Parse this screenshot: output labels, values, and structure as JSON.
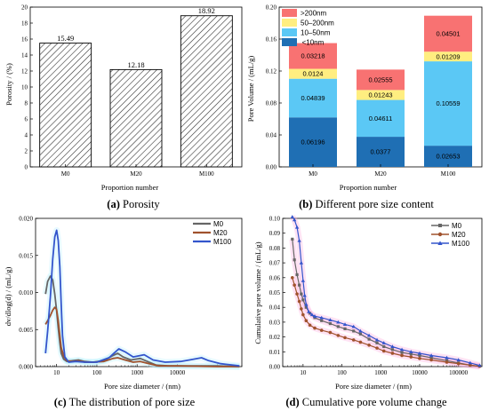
{
  "captions": {
    "a": {
      "letter": "(a)",
      "text": " Porosity"
    },
    "b": {
      "letter": "(b)",
      "text": " Different pore size content"
    },
    "c": {
      "letter": "(c)",
      "text": " The distribution of pore size"
    },
    "d": {
      "letter": "(d)",
      "text": " Cumulative pore volume change"
    }
  },
  "colors": {
    "M0": "#666666",
    "M20": "#a0522d",
    "M100": "#3355cc",
    "lt10": "#1f6fb4",
    "r10_50": "#5bc8f5",
    "r50_200": "#ffee80",
    "gt200": "#f87272"
  },
  "chart_data": [
    {
      "id": "a",
      "type": "bar",
      "categories": [
        "M0",
        "M20",
        "M100"
      ],
      "values": [
        15.49,
        12.18,
        18.92
      ],
      "value_labels": [
        "15.49",
        "12.18",
        "18.92"
      ],
      "xlabel": "Proportion number",
      "ylabel": "Porosity / (%)",
      "ylim": [
        0,
        20
      ],
      "yticks": [
        "0",
        "2",
        "4",
        "6",
        "8",
        "10",
        "12",
        "14",
        "16",
        "18",
        "20"
      ],
      "pattern": "hatch"
    },
    {
      "id": "b",
      "type": "bar",
      "stacked": true,
      "categories": [
        "M0",
        "M20",
        "M100"
      ],
      "series": [
        {
          "name": " <10nm",
          "key": "lt10",
          "values": [
            0.06196,
            0.0377,
            0.02653
          ],
          "labels": [
            "0.06196",
            "0.0377",
            "0.02653"
          ]
        },
        {
          "name": "10–50nm",
          "key": "r10_50",
          "values": [
            0.04839,
            0.04611,
            0.10559
          ],
          "labels": [
            "0.04839",
            "0.04611",
            "0.10559"
          ]
        },
        {
          "name": "50–200nm",
          "key": "r50_200",
          "values": [
            0.0124,
            0.01243,
            0.01209
          ],
          "labels": [
            "0.0124",
            "0.01243",
            "0.01209"
          ]
        },
        {
          "name": ">200nm",
          "key": "gt200",
          "values": [
            0.03218,
            0.02555,
            0.04501
          ],
          "labels": [
            "0.03218",
            "0.02555",
            "0.04501"
          ]
        }
      ],
      "legend_order": [
        "gt200",
        "r50_200",
        "r10_50",
        "lt10"
      ],
      "legend_placement": "top-left",
      "xlabel": "Proportion number",
      "ylabel": "Pore Volume / (mL/g)",
      "ylim": [
        0,
        0.2
      ],
      "yticks": [
        "0.00",
        "0.04",
        "0.08",
        "0.12",
        "0.16",
        "0.20"
      ]
    },
    {
      "id": "c",
      "type": "line",
      "xscale": "log",
      "xlabel": "Pore size diameter / (nm)",
      "ylabel": "dv/dlog(d) / (mL/g)",
      "ylim": [
        0,
        0.02
      ],
      "yticks": [
        "0.000",
        "0.005",
        "0.010",
        "0.015",
        "0.020"
      ],
      "xlim": [
        3,
        400000
      ],
      "xticks": [
        10,
        100,
        1000,
        10000,
        100000
      ],
      "xtick_labels": [
        "10",
        "100",
        "1000",
        "10000",
        ""
      ],
      "legend_placement": "top-right",
      "series": [
        {
          "name": "M0",
          "key": "M0",
          "points": [
            [
              5.3,
              0.0098
            ],
            [
              6,
              0.0115
            ],
            [
              7,
              0.0122
            ],
            [
              8,
              0.0117
            ],
            [
              9,
              0.0098
            ],
            [
              10,
              0.0075
            ],
            [
              11,
              0.0052
            ],
            [
              12,
              0.0032
            ],
            [
              13,
              0.0018
            ],
            [
              15,
              0.001
            ],
            [
              18,
              0.0007
            ],
            [
              25,
              0.0008
            ],
            [
              35,
              0.0009
            ],
            [
              50,
              0.0007
            ],
            [
              80,
              0.0006
            ],
            [
              150,
              0.0008
            ],
            [
              250,
              0.0015
            ],
            [
              330,
              0.0018
            ],
            [
              450,
              0.0013
            ],
            [
              700,
              0.0009
            ],
            [
              1200,
              0.0011
            ],
            [
              1800,
              0.0007
            ],
            [
              3000,
              0.0002
            ],
            [
              6000,
              0.0001
            ],
            [
              20000,
              0.0001
            ],
            [
              100000,
              0.0001
            ],
            [
              350000,
              0.0
            ]
          ]
        },
        {
          "name": "M20",
          "key": "M20",
          "points": [
            [
              5.3,
              0.0057
            ],
            [
              6,
              0.0062
            ],
            [
              7,
              0.0069
            ],
            [
              8,
              0.0076
            ],
            [
              9,
              0.008
            ],
            [
              10,
              0.0077
            ],
            [
              11,
              0.0062
            ],
            [
              12,
              0.0042
            ],
            [
              13,
              0.0026
            ],
            [
              15,
              0.0014
            ],
            [
              18,
              0.0008
            ],
            [
              25,
              0.0007
            ],
            [
              35,
              0.0008
            ],
            [
              50,
              0.0006
            ],
            [
              80,
              0.0006
            ],
            [
              150,
              0.0007
            ],
            [
              250,
              0.0011
            ],
            [
              330,
              0.0012
            ],
            [
              500,
              0.0009
            ],
            [
              800,
              0.0006
            ],
            [
              1200,
              0.0007
            ],
            [
              2000,
              0.0004
            ],
            [
              3500,
              0.0001
            ],
            [
              10000,
              0.0001
            ],
            [
              100000,
              0.0
            ],
            [
              350000,
              0.0
            ]
          ]
        },
        {
          "name": "M100",
          "key": "M100",
          "points": [
            [
              5.3,
              0.0018
            ],
            [
              6,
              0.0048
            ],
            [
              7,
              0.0095
            ],
            [
              8,
              0.0145
            ],
            [
              9,
              0.0175
            ],
            [
              10,
              0.0184
            ],
            [
              11,
              0.017
            ],
            [
              12,
              0.0135
            ],
            [
              13,
              0.0085
            ],
            [
              14,
              0.0042
            ],
            [
              16,
              0.0013
            ],
            [
              20,
              0.0006
            ],
            [
              30,
              0.0007
            ],
            [
              50,
              0.0006
            ],
            [
              100,
              0.0006
            ],
            [
              200,
              0.0012
            ],
            [
              350,
              0.0024
            ],
            [
              500,
              0.002
            ],
            [
              800,
              0.0013
            ],
            [
              1500,
              0.0016
            ],
            [
              2500,
              0.0009
            ],
            [
              5000,
              0.0006
            ],
            [
              12000,
              0.0007
            ],
            [
              20000,
              0.0009
            ],
            [
              40000,
              0.0012
            ],
            [
              60000,
              0.0008
            ],
            [
              120000,
              0.0004
            ],
            [
              350000,
              0.0001
            ]
          ]
        }
      ]
    },
    {
      "id": "d",
      "type": "line",
      "xscale": "log",
      "xlabel": "Pore size diameter / (nm)",
      "ylabel": "Cumulative pore volume / (mL/g)",
      "ylim": [
        0,
        0.1
      ],
      "yticks": [
        "0.00",
        "0.01",
        "0.02",
        "0.03",
        "0.04",
        "0.05",
        "0.06",
        "0.07",
        "0.08",
        "0.09",
        "0.10"
      ],
      "xlim": [
        3,
        400000
      ],
      "xticks": [
        10,
        100,
        1000,
        10000,
        100000
      ],
      "xtick_labels": [
        "10",
        "100",
        "1000",
        "10000",
        "100000"
      ],
      "legend_placement": "top-right",
      "series": [
        {
          "name": "M0",
          "key": "M0",
          "points": [
            [
              5.3,
              0.086
            ],
            [
              6,
              0.072
            ],
            [
              7,
              0.062
            ],
            [
              8,
              0.055
            ],
            [
              9,
              0.049
            ],
            [
              10,
              0.045
            ],
            [
              12,
              0.04
            ],
            [
              15,
              0.036
            ],
            [
              20,
              0.033
            ],
            [
              30,
              0.031
            ],
            [
              50,
              0.029
            ],
            [
              80,
              0.027
            ],
            [
              120,
              0.0255
            ],
            [
              200,
              0.024
            ],
            [
              300,
              0.022
            ],
            [
              500,
              0.0185
            ],
            [
              800,
              0.016
            ],
            [
              1200,
              0.0135
            ],
            [
              2000,
              0.0115
            ],
            [
              3500,
              0.0095
            ],
            [
              6000,
              0.0085
            ],
            [
              10000,
              0.0075
            ],
            [
              20000,
              0.006
            ],
            [
              50000,
              0.004
            ],
            [
              100000,
              0.0025
            ],
            [
              200000,
              0.001
            ],
            [
              350000,
              0.0003
            ]
          ]
        },
        {
          "name": "M20",
          "key": "M20",
          "points": [
            [
              5.3,
              0.06
            ],
            [
              6,
              0.055
            ],
            [
              7,
              0.049
            ],
            [
              8,
              0.044
            ],
            [
              9,
              0.039
            ],
            [
              10,
              0.035
            ],
            [
              12,
              0.031
            ],
            [
              15,
              0.028
            ],
            [
              20,
              0.026
            ],
            [
              30,
              0.0245
            ],
            [
              50,
              0.023
            ],
            [
              80,
              0.021
            ],
            [
              120,
              0.0195
            ],
            [
              200,
              0.018
            ],
            [
              300,
              0.0165
            ],
            [
              500,
              0.0145
            ],
            [
              800,
              0.0125
            ],
            [
              1200,
              0.0105
            ],
            [
              2000,
              0.009
            ],
            [
              3500,
              0.0075
            ],
            [
              6000,
              0.0065
            ],
            [
              10000,
              0.0055
            ],
            [
              20000,
              0.0045
            ],
            [
              50000,
              0.003
            ],
            [
              100000,
              0.002
            ],
            [
              200000,
              0.001
            ],
            [
              350000,
              0.0002
            ]
          ]
        },
        {
          "name": "M100",
          "key": "M100",
          "points": [
            [
              5.3,
              0.101
            ],
            [
              6,
              0.099
            ],
            [
              7,
              0.094
            ],
            [
              8,
              0.085
            ],
            [
              9,
              0.07
            ],
            [
              10,
              0.058
            ],
            [
              11,
              0.048
            ],
            [
              12,
              0.042
            ],
            [
              14,
              0.037
            ],
            [
              17,
              0.035
            ],
            [
              20,
              0.034
            ],
            [
              30,
              0.033
            ],
            [
              50,
              0.0315
            ],
            [
              80,
              0.03
            ],
            [
              120,
              0.0285
            ],
            [
              200,
              0.027
            ],
            [
              300,
              0.024
            ],
            [
              500,
              0.021
            ],
            [
              800,
              0.018
            ],
            [
              1200,
              0.016
            ],
            [
              2000,
              0.0135
            ],
            [
              3500,
              0.0115
            ],
            [
              6000,
              0.01
            ],
            [
              10000,
              0.009
            ],
            [
              20000,
              0.0075
            ],
            [
              50000,
              0.006
            ],
            [
              100000,
              0.0045
            ],
            [
              200000,
              0.0025
            ],
            [
              350000,
              0.0008
            ]
          ]
        }
      ]
    }
  ]
}
